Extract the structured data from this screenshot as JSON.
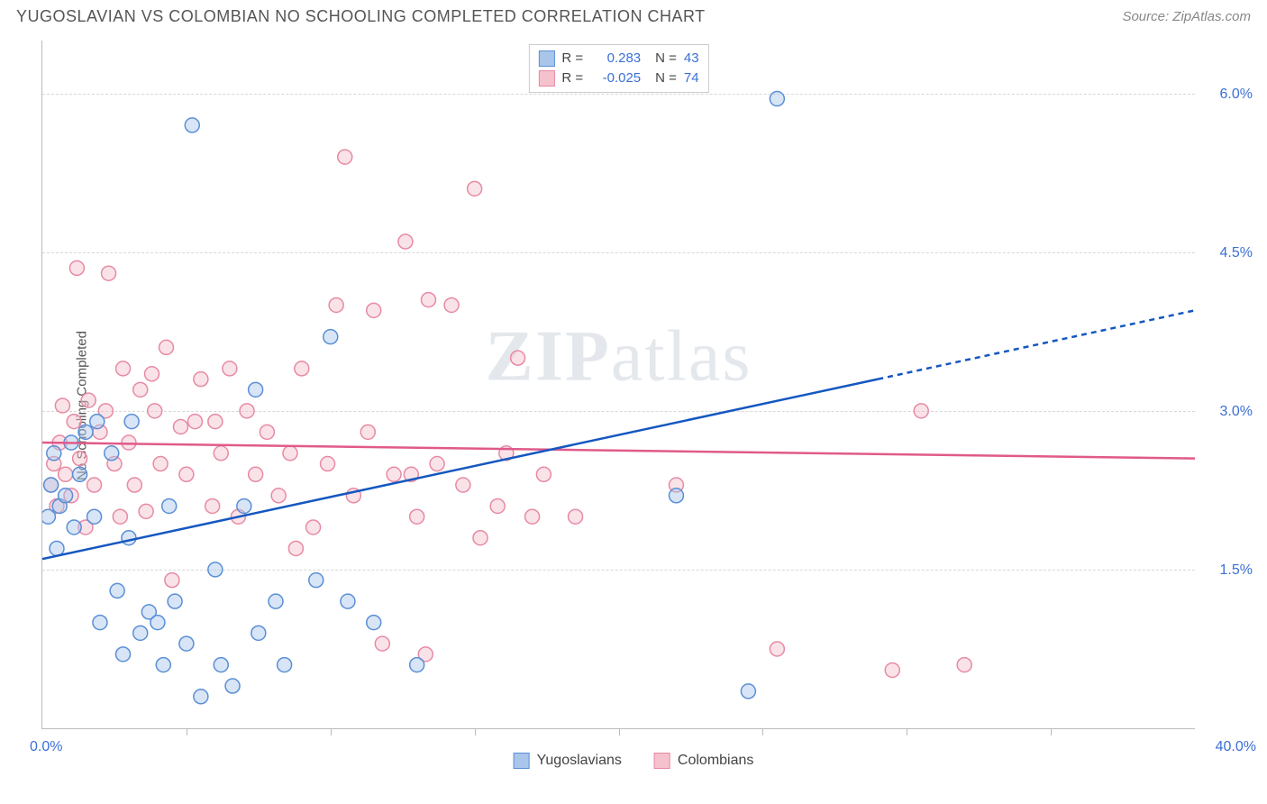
{
  "title": "YUGOSLAVIAN VS COLOMBIAN NO SCHOOLING COMPLETED CORRELATION CHART",
  "source": "Source: ZipAtlas.com",
  "ylabel": "No Schooling Completed",
  "watermark_1": "ZIP",
  "watermark_2": "atlas",
  "chart": {
    "type": "scatter",
    "background_color": "#ffffff",
    "grid_color": "#d8d8d8",
    "xlim": [
      0.0,
      40.0
    ],
    "ylim": [
      0.0,
      6.5
    ],
    "xlim_labels": [
      "0.0%",
      "40.0%"
    ],
    "ytick_values": [
      1.5,
      3.0,
      4.5,
      6.0
    ],
    "ytick_labels": [
      "1.5%",
      "3.0%",
      "4.5%",
      "6.0%"
    ],
    "xtick_values": [
      5,
      10,
      15,
      20,
      25,
      30,
      35
    ],
    "marker_radius": 8,
    "marker_opacity": 0.45,
    "line_width": 2.5,
    "series": [
      {
        "name": "Yugoslavians",
        "color_fill": "#a9c6ea",
        "color_stroke": "#5a8fd6",
        "line_color": "#1557c0",
        "R": "0.283",
        "N": "43",
        "trend": {
          "x1": 0.0,
          "y1": 1.6,
          "x2": 29.0,
          "y2": 3.3,
          "x2_ext": 40.0,
          "y2_ext": 3.95
        },
        "points": [
          [
            0.2,
            2.0
          ],
          [
            0.3,
            2.3
          ],
          [
            0.4,
            2.6
          ],
          [
            0.5,
            1.7
          ],
          [
            0.6,
            2.1
          ],
          [
            0.8,
            2.2
          ],
          [
            1.0,
            2.7
          ],
          [
            1.1,
            1.9
          ],
          [
            1.3,
            2.4
          ],
          [
            1.5,
            2.8
          ],
          [
            1.8,
            2.0
          ],
          [
            1.9,
            2.9
          ],
          [
            2.0,
            1.0
          ],
          [
            2.4,
            2.6
          ],
          [
            2.6,
            1.3
          ],
          [
            2.8,
            0.7
          ],
          [
            3.0,
            1.8
          ],
          [
            3.1,
            2.9
          ],
          [
            3.4,
            0.9
          ],
          [
            3.7,
            1.1
          ],
          [
            4.0,
            1.0
          ],
          [
            4.2,
            0.6
          ],
          [
            4.4,
            2.1
          ],
          [
            4.6,
            1.2
          ],
          [
            5.0,
            0.8
          ],
          [
            5.2,
            5.7
          ],
          [
            5.5,
            0.3
          ],
          [
            6.0,
            1.5
          ],
          [
            6.2,
            0.6
          ],
          [
            6.6,
            0.4
          ],
          [
            7.0,
            2.1
          ],
          [
            7.4,
            3.2
          ],
          [
            7.5,
            0.9
          ],
          [
            8.1,
            1.2
          ],
          [
            8.4,
            0.6
          ],
          [
            9.5,
            1.4
          ],
          [
            10.0,
            3.7
          ],
          [
            10.6,
            1.2
          ],
          [
            11.5,
            1.0
          ],
          [
            13.0,
            0.6
          ],
          [
            22.0,
            2.2
          ],
          [
            25.5,
            5.95
          ],
          [
            24.5,
            0.35
          ]
        ]
      },
      {
        "name": "Colombians",
        "color_fill": "#f5c1cd",
        "color_stroke": "#e78aa3",
        "line_color": "#e05a8a",
        "R": "-0.025",
        "N": "74",
        "trend": {
          "x1": 0.0,
          "y1": 2.7,
          "x2": 40.0,
          "y2": 2.55,
          "x2_ext": 40.0,
          "y2_ext": 2.55
        },
        "points": [
          [
            0.3,
            2.3
          ],
          [
            0.4,
            2.5
          ],
          [
            0.5,
            2.1
          ],
          [
            0.6,
            2.7
          ],
          [
            0.7,
            3.05
          ],
          [
            0.8,
            2.4
          ],
          [
            1.0,
            2.2
          ],
          [
            1.1,
            2.9
          ],
          [
            1.3,
            2.55
          ],
          [
            1.5,
            1.9
          ],
          [
            1.6,
            3.1
          ],
          [
            1.8,
            2.3
          ],
          [
            2.0,
            2.8
          ],
          [
            2.2,
            3.0
          ],
          [
            2.3,
            4.3
          ],
          [
            2.5,
            2.5
          ],
          [
            2.7,
            2.0
          ],
          [
            2.8,
            3.4
          ],
          [
            3.0,
            2.7
          ],
          [
            3.2,
            2.3
          ],
          [
            3.4,
            3.2
          ],
          [
            3.6,
            2.05
          ],
          [
            3.9,
            3.0
          ],
          [
            4.1,
            2.5
          ],
          [
            4.3,
            3.6
          ],
          [
            4.5,
            1.4
          ],
          [
            4.8,
            2.85
          ],
          [
            5.0,
            2.4
          ],
          [
            5.3,
            2.9
          ],
          [
            5.5,
            3.3
          ],
          [
            5.9,
            2.1
          ],
          [
            6.2,
            2.6
          ],
          [
            6.5,
            3.4
          ],
          [
            6.8,
            2.0
          ],
          [
            7.1,
            3.0
          ],
          [
            7.4,
            2.4
          ],
          [
            7.8,
            2.8
          ],
          [
            8.2,
            2.2
          ],
          [
            8.6,
            2.6
          ],
          [
            9.0,
            3.4
          ],
          [
            9.4,
            1.9
          ],
          [
            9.9,
            2.5
          ],
          [
            10.2,
            4.0
          ],
          [
            10.5,
            5.4
          ],
          [
            10.8,
            2.2
          ],
          [
            11.3,
            2.8
          ],
          [
            11.5,
            3.95
          ],
          [
            11.8,
            0.8
          ],
          [
            12.2,
            2.4
          ],
          [
            12.6,
            4.6
          ],
          [
            13.0,
            2.0
          ],
          [
            13.4,
            4.05
          ],
          [
            13.7,
            2.5
          ],
          [
            14.2,
            4.0
          ],
          [
            14.6,
            2.3
          ],
          [
            15.0,
            5.1
          ],
          [
            15.2,
            1.8
          ],
          [
            15.8,
            2.1
          ],
          [
            16.1,
            2.6
          ],
          [
            16.5,
            3.5
          ],
          [
            17.0,
            2.0
          ],
          [
            13.3,
            0.7
          ],
          [
            12.8,
            2.4
          ],
          [
            17.4,
            2.4
          ],
          [
            18.5,
            2.0
          ],
          [
            22.0,
            2.3
          ],
          [
            25.5,
            0.75
          ],
          [
            29.5,
            0.55
          ],
          [
            30.5,
            3.0
          ],
          [
            32.0,
            0.6
          ],
          [
            8.8,
            1.7
          ],
          [
            6.0,
            2.9
          ],
          [
            3.8,
            3.35
          ],
          [
            1.2,
            4.35
          ]
        ]
      }
    ]
  },
  "legend_top": {
    "rows": [
      {
        "sw_fill": "#a9c6ea",
        "sw_stroke": "#5a8fd6",
        "r_label": "R =",
        "r_val": "0.283",
        "n_label": "N =",
        "n_val": "43"
      },
      {
        "sw_fill": "#f5c1cd",
        "sw_stroke": "#e78aa3",
        "r_label": "R =",
        "r_val": "-0.025",
        "n_label": "N =",
        "n_val": "74"
      }
    ]
  },
  "legend_bottom": {
    "items": [
      {
        "sw_fill": "#a9c6ea",
        "sw_stroke": "#5a8fd6",
        "label": "Yugoslavians"
      },
      {
        "sw_fill": "#f5c1cd",
        "sw_stroke": "#e78aa3",
        "label": "Colombians"
      }
    ]
  }
}
